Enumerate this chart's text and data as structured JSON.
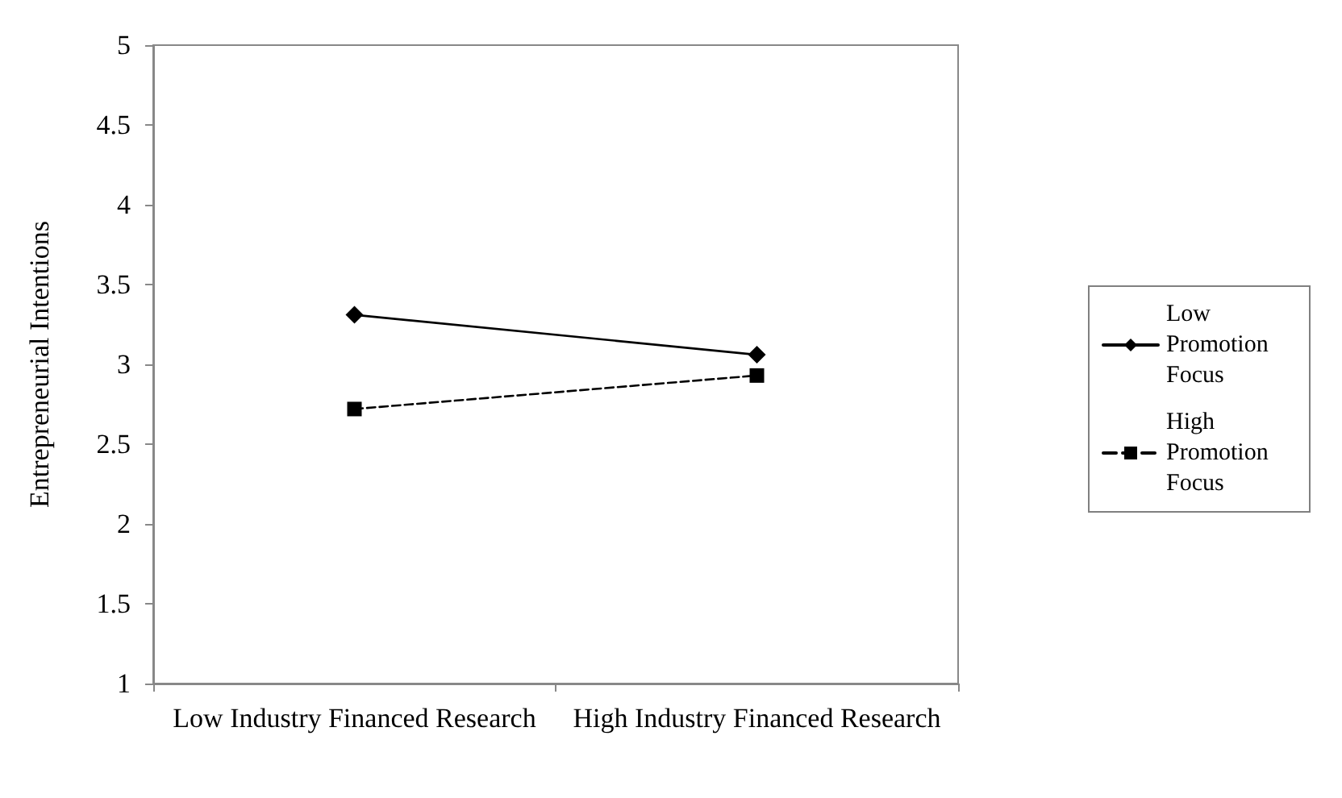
{
  "chart_data": {
    "type": "line",
    "ylabel": "Entrepreneurial Intentions",
    "categories": [
      "Low Industry Financed Research",
      "High Industry Financed Research"
    ],
    "series": [
      {
        "name": "Low Promotion Focus",
        "color": "#000000",
        "values": [
          3.31,
          3.06
        ],
        "marker": "diamond",
        "line_style": "solid"
      },
      {
        "name": "High Promotion Focus",
        "color": "#000000",
        "values": [
          2.72,
          2.93
        ],
        "marker": "square",
        "line_style": "dashed"
      }
    ],
    "ylim": [
      1,
      5
    ],
    "yticks": [
      1,
      1.5,
      2,
      2.5,
      3,
      3.5,
      4,
      4.5,
      5
    ],
    "grid": false,
    "legend": "right"
  }
}
